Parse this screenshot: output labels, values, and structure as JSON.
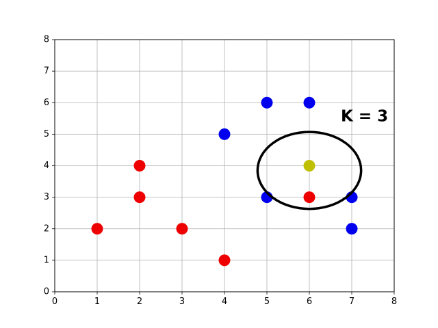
{
  "chart_data": {
    "type": "scatter",
    "title": "",
    "xlabel": "",
    "ylabel": "",
    "xlim": [
      0,
      8
    ],
    "ylim": [
      0,
      8
    ],
    "xticks": [
      "0",
      "1",
      "2",
      "3",
      "4",
      "5",
      "6",
      "7",
      "8"
    ],
    "yticks": [
      "0",
      "1",
      "2",
      "3",
      "4",
      "5",
      "6",
      "7",
      "8"
    ],
    "grid": true,
    "series": [
      {
        "color": "#ee0000",
        "points": [
          [
            1,
            2
          ],
          [
            2,
            3
          ],
          [
            2,
            4
          ],
          [
            3,
            2
          ],
          [
            4,
            1
          ],
          [
            6,
            3
          ]
        ]
      },
      {
        "color": "#0000ee",
        "points": [
          [
            4,
            5
          ],
          [
            5,
            6
          ],
          [
            6,
            6
          ],
          [
            5,
            3
          ],
          [
            7,
            3
          ],
          [
            7,
            2
          ]
        ]
      },
      {
        "color": "#bfbf00",
        "points": [
          [
            6,
            4
          ]
        ]
      }
    ],
    "circle": {
      "center": [
        6,
        3.85
      ],
      "radius": 1.22,
      "color": "#000000"
    },
    "annotation": {
      "text": "K = 3",
      "position": [
        7.3,
        5.55
      ]
    }
  }
}
